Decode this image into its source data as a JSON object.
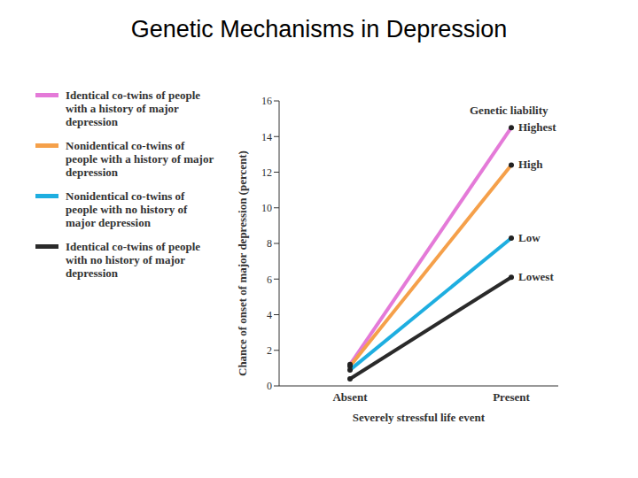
{
  "chart_data": {
    "type": "line",
    "title": "Genetic Mechanisms in Depression",
    "x_label": "Severely stressful life event",
    "y_label": "Chance of onset of major depression (percent)",
    "annotation": "Genetic liability",
    "categories": [
      "Absent",
      "Present"
    ],
    "ylim": [
      0,
      16
    ],
    "yticks": [
      0,
      2,
      4,
      6,
      8,
      10,
      12,
      14,
      16
    ],
    "marker": "circle",
    "grid": false,
    "series": [
      {
        "name": "Identical co-twins of people with a history of major depression",
        "label": "Highest",
        "color": "#e47ad8",
        "values": [
          1.2,
          14.5
        ]
      },
      {
        "name": "Nonidentical co-twins of people with a history of major depression",
        "label": "High",
        "color": "#f5a04a",
        "values": [
          1.1,
          12.4
        ]
      },
      {
        "name": "Nonidentical co-twins of people with no history of major depression",
        "label": "Low",
        "color": "#1eaee0",
        "values": [
          0.9,
          8.3
        ]
      },
      {
        "name": "Identical co-twins of people with no history of major depression",
        "label": "Lowest",
        "color": "#2a2a2a",
        "values": [
          0.4,
          6.1
        ]
      }
    ]
  }
}
